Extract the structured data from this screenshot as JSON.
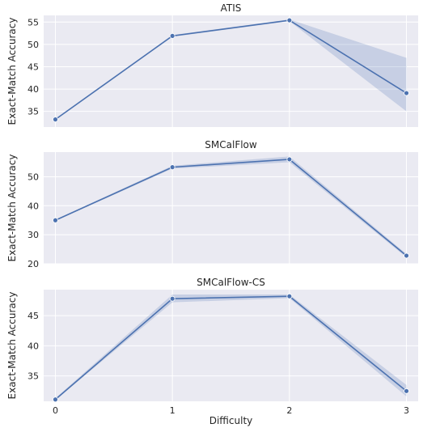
{
  "chart_data": [
    {
      "type": "line",
      "title": "ATIS",
      "xlabel": "",
      "ylabel": "Exact-Match Accuracy",
      "x": [
        0,
        1,
        2,
        3
      ],
      "xlim": [
        -0.1,
        3.1
      ],
      "ylim": [
        31.5,
        56.5
      ],
      "yticks": [
        35,
        40,
        45,
        50,
        55
      ],
      "xtick_labels_visible": false,
      "color": "#4c72b0",
      "series": [
        {
          "values": [
            33.2,
            51.9,
            55.4,
            39.1
          ],
          "ci_low": [
            33.2,
            51.7,
            55.2,
            35.0
          ],
          "ci_high": [
            33.2,
            52.1,
            55.6,
            47.0
          ]
        }
      ]
    },
    {
      "type": "line",
      "title": "SMCalFlow",
      "xlabel": "",
      "ylabel": "Exact-Match Accuracy",
      "x": [
        0,
        1,
        2,
        3
      ],
      "xlim": [
        -0.1,
        3.1
      ],
      "ylim": [
        20,
        58.5
      ],
      "yticks": [
        20,
        30,
        40,
        50
      ],
      "xtick_labels_visible": false,
      "color": "#4c72b0",
      "series": [
        {
          "values": [
            35.0,
            53.3,
            56.0,
            22.8
          ],
          "ci_low": [
            34.8,
            52.8,
            55.0,
            22.2
          ],
          "ci_high": [
            35.2,
            53.8,
            57.0,
            23.4
          ]
        }
      ]
    },
    {
      "type": "line",
      "title": "SMCalFlow-CS",
      "xlabel": "Difficulty",
      "ylabel": "Exact-Match Accuracy",
      "x": [
        0,
        1,
        2,
        3
      ],
      "xlim": [
        -0.1,
        3.1
      ],
      "ylim": [
        30.8,
        49.3
      ],
      "yticks": [
        35,
        40,
        45
      ],
      "xtick_labels_visible": true,
      "xtick_labels": [
        "0",
        "1",
        "2",
        "3"
      ],
      "color": "#4c72b0",
      "series": [
        {
          "values": [
            31.1,
            47.8,
            48.2,
            32.5
          ],
          "ci_low": [
            31.0,
            47.2,
            47.9,
            31.6
          ],
          "ci_high": [
            31.3,
            48.5,
            48.5,
            33.5
          ]
        }
      ]
    }
  ]
}
